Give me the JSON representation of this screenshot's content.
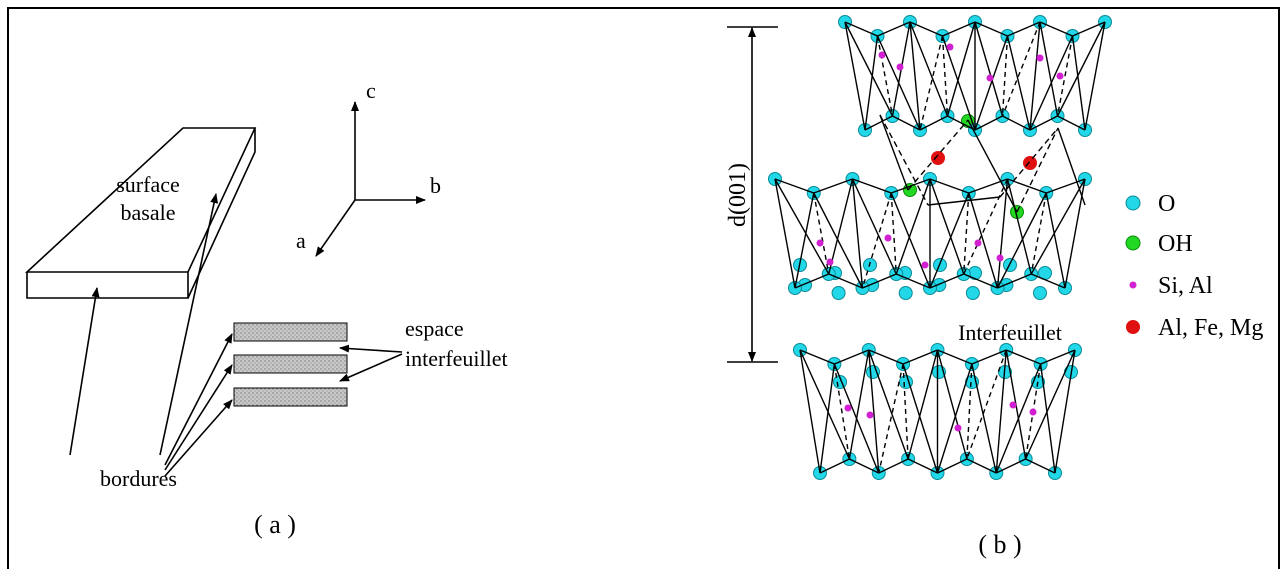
{
  "panel_a": {
    "block_label": [
      "surface",
      "basale"
    ],
    "axes": {
      "c": "c",
      "b": "b",
      "a": "a"
    },
    "bordures": "bordures",
    "interlayer_label": [
      "espace",
      "interfeuillet"
    ],
    "caption": "( a )"
  },
  "panel_b": {
    "spacing_label": "d(001)",
    "interlayer_label": "Interfeuillet",
    "legend": [
      "O",
      "OH",
      "Si, Al",
      "Al, Fe, Mg"
    ],
    "caption": "( b )"
  }
}
